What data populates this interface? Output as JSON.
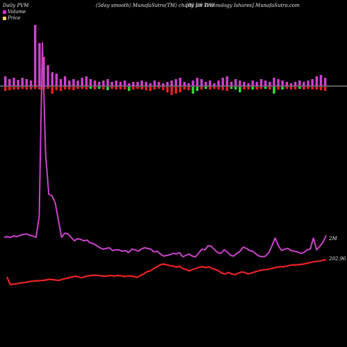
{
  "header": {
    "left": "Daily PVM",
    "center": "(5day smooth) MunafaSutra(TM) charts for IYW",
    "right": "[DJ US Technology Ishares] MunafaSutra.com"
  },
  "legend": [
    {
      "label": "Volume",
      "color": "#cc33cc"
    },
    {
      "label": "Price",
      "color": "#ffcc66"
    }
  ],
  "colors": {
    "volume_line": "#cc44cc",
    "price_line": "#ee2222",
    "baseline": "#bbbbbb",
    "vol_bar": "#cc44cc",
    "up_bar": "#33dd33",
    "down_bar": "#ee2222"
  },
  "chart_data": {
    "type": "line",
    "end_labels": {
      "volume": "2M",
      "price": "202.96"
    },
    "volume_series": [
      30,
      31,
      30,
      32,
      31,
      33,
      34,
      35,
      33,
      32,
      30,
      60,
      310,
      150,
      92,
      90,
      80,
      55,
      30,
      36,
      35,
      30,
      25,
      28,
      27,
      25,
      26,
      22,
      21,
      18,
      15,
      13,
      14,
      15,
      11,
      12,
      12,
      10,
      11,
      8,
      13,
      12,
      10,
      13,
      15,
      14,
      13,
      9,
      10,
      6,
      3,
      4,
      5,
      7,
      6,
      8,
      2,
      4,
      6,
      3,
      2,
      7,
      13,
      12,
      18,
      17,
      12,
      8,
      7,
      12,
      9,
      4,
      3,
      7,
      10,
      16,
      14,
      11,
      10,
      6,
      3,
      2,
      3,
      8,
      18,
      29,
      18,
      11,
      13,
      14,
      11,
      10,
      9,
      7,
      8,
      12,
      13,
      29,
      12,
      17,
      23,
      33
    ],
    "price_series": [
      180,
      170,
      170.5,
      171,
      172,
      172.5,
      173,
      174,
      174.5,
      175,
      175,
      175.5,
      176,
      177,
      176.5,
      176,
      175.5,
      177,
      178,
      179,
      180,
      181,
      180,
      179,
      180.5,
      181.5,
      182,
      182.3,
      182,
      181.5,
      181,
      181.5,
      182,
      181.2,
      182,
      181.6,
      180.5,
      181.2,
      181.5,
      180.5,
      179.5,
      182,
      184,
      187,
      188,
      191,
      193,
      196,
      197,
      196,
      195,
      194.5,
      193,
      194,
      191,
      190,
      188,
      190,
      191,
      193,
      193.5,
      192.5,
      193.5,
      191,
      190,
      188,
      185,
      184,
      186,
      184,
      183,
      185,
      186.5,
      186,
      184,
      185,
      186.5,
      188,
      189,
      189.5,
      190,
      191,
      192,
      193,
      193.5,
      193.5,
      194.5,
      195.5,
      196,
      196,
      196.5,
      197,
      198,
      199,
      200,
      200.5,
      201,
      202,
      202.96
    ],
    "bars": [
      {
        "vol": 14,
        "chg": -6
      },
      {
        "vol": 10,
        "chg": -5
      },
      {
        "vol": 12,
        "chg": -4
      },
      {
        "vol": 9,
        "chg": -4
      },
      {
        "vol": 12,
        "chg": -3
      },
      {
        "vol": 10,
        "chg": -4
      },
      {
        "vol": 8,
        "chg": -4
      },
      {
        "vol": 88,
        "chg": -3
      },
      {
        "vol": 62,
        "chg": -4
      },
      {
        "vol": 42,
        "chg": -4
      },
      {
        "vol": 30,
        "chg": -3
      },
      {
        "vol": 20,
        "chg": -10
      },
      {
        "vol": 18,
        "chg": -5
      },
      {
        "vol": 10,
        "chg": -6
      },
      {
        "vol": 14,
        "chg": -4
      },
      {
        "vol": 8,
        "chg": -4
      },
      {
        "vol": 10,
        "chg": -5
      },
      {
        "vol": 8,
        "chg": -3
      },
      {
        "vol": 12,
        "chg": -3
      },
      {
        "vol": 14,
        "chg": -4
      },
      {
        "vol": 10,
        "chg": 3
      },
      {
        "vol": 8,
        "chg": -4
      },
      {
        "vol": 6,
        "chg": 3
      },
      {
        "vol": 8,
        "chg": -4
      },
      {
        "vol": 10,
        "chg": 5
      },
      {
        "vol": 6,
        "chg": -3
      },
      {
        "vol": 8,
        "chg": -4
      },
      {
        "vol": 6,
        "chg": -4
      },
      {
        "vol": 8,
        "chg": -4
      },
      {
        "vol": 4,
        "chg": 6
      },
      {
        "vol": 6,
        "chg": -4
      },
      {
        "vol": 6,
        "chg": -3
      },
      {
        "vol": 8,
        "chg": -4
      },
      {
        "vol": 6,
        "chg": -5
      },
      {
        "vol": 4,
        "chg": -6
      },
      {
        "vol": 8,
        "chg": -4
      },
      {
        "vol": 6,
        "chg": -3
      },
      {
        "vol": 4,
        "chg": -5
      },
      {
        "vol": 6,
        "chg": -8
      },
      {
        "vol": 8,
        "chg": -12
      },
      {
        "vol": 10,
        "chg": -10
      },
      {
        "vol": 12,
        "chg": -8
      },
      {
        "vol": 6,
        "chg": -4
      },
      {
        "vol": 4,
        "chg": -5
      },
      {
        "vol": 8,
        "chg": 10
      },
      {
        "vol": 12,
        "chg": 6
      },
      {
        "vol": 10,
        "chg": -4
      },
      {
        "vol": 6,
        "chg": 3
      },
      {
        "vol": 8,
        "chg": -4
      },
      {
        "vol": 4,
        "chg": -3
      },
      {
        "vol": 8,
        "chg": -4
      },
      {
        "vol": 12,
        "chg": -5
      },
      {
        "vol": 14,
        "chg": -6
      },
      {
        "vol": 6,
        "chg": 3
      },
      {
        "vol": 10,
        "chg": 4
      },
      {
        "vol": 8,
        "chg": 8
      },
      {
        "vol": 6,
        "chg": -4
      },
      {
        "vol": 4,
        "chg": -4
      },
      {
        "vol": 8,
        "chg": 4
      },
      {
        "vol": 6,
        "chg": -4
      },
      {
        "vol": 10,
        "chg": -3
      },
      {
        "vol": 8,
        "chg": 3
      },
      {
        "vol": 6,
        "chg": -4
      },
      {
        "vol": 12,
        "chg": 10
      },
      {
        "vol": 10,
        "chg": -4
      },
      {
        "vol": 8,
        "chg": 4
      },
      {
        "vol": 6,
        "chg": -3
      },
      {
        "vol": 4,
        "chg": -4
      },
      {
        "vol": 6,
        "chg": -4
      },
      {
        "vol": 8,
        "chg": 3
      },
      {
        "vol": 6,
        "chg": -4
      },
      {
        "vol": 8,
        "chg": -3
      },
      {
        "vol": 10,
        "chg": -4
      },
      {
        "vol": 14,
        "chg": -4
      },
      {
        "vol": 16,
        "chg": -5
      },
      {
        "vol": 12,
        "chg": -6
      }
    ]
  }
}
